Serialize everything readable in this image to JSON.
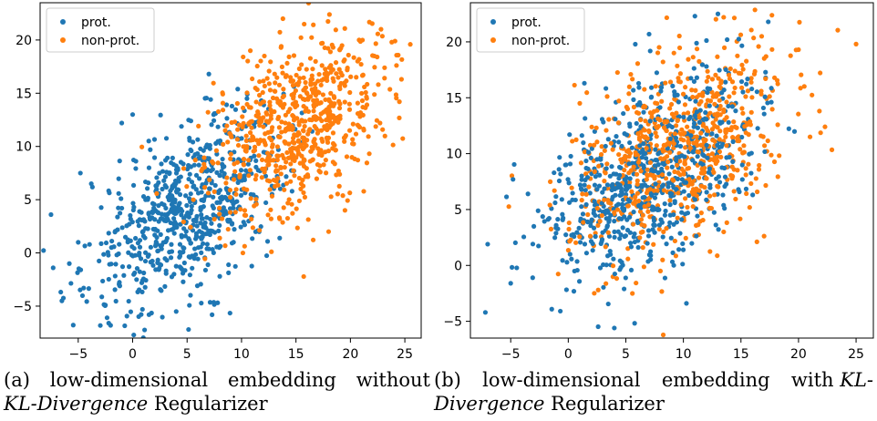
{
  "colors": {
    "prot": "#1f77b4",
    "non_prot": "#ff7f0e"
  },
  "legend_labels": [
    "prot.",
    "non-prot."
  ],
  "captions": {
    "a": {
      "label": "(a)",
      "line1_words": [
        "low-dimensional",
        "embedding",
        "without"
      ],
      "line2_italic": "KL-Divergence",
      "line2_rest": " Regularizer"
    },
    "b": {
      "label": "(b)",
      "line1_words": [
        "low-dimensional",
        "embedding",
        "with"
      ],
      "line1_italic": "KL-",
      "line2_italic": "Divergence",
      "line2_rest": " Regularizer"
    }
  },
  "chart_data": [
    {
      "type": "scatter",
      "title": "",
      "xlabel": "",
      "ylabel": "",
      "xlim": [
        -8.5,
        26.5
      ],
      "ylim": [
        -8,
        23.5
      ],
      "xticks": [
        -5,
        0,
        5,
        10,
        15,
        20,
        25
      ],
      "yticks": [
        -5,
        0,
        5,
        10,
        15,
        20
      ],
      "legend_position": "top-left",
      "series": [
        {
          "name": "prot.",
          "center": [
            5,
            4
          ],
          "spread": [
            4.5,
            4.5
          ],
          "corr": 0.55,
          "count": 700,
          "points": [
            [
              -7.5,
              3.6
            ],
            [
              -7.3,
              -1.4
            ],
            [
              -6.5,
              -4.5
            ],
            [
              -4.8,
              7.5
            ],
            [
              -3.8,
              6.5
            ],
            [
              -2.2,
              -6.6
            ],
            [
              -2.5,
              -4.9
            ],
            [
              0,
              13
            ],
            [
              -1,
              12.2
            ],
            [
              1.5,
              -5.8
            ],
            [
              4,
              -5.5
            ],
            [
              7,
              16.8
            ],
            [
              10.5,
              14.5
            ],
            [
              8,
              -2.2
            ],
            [
              -5,
              1
            ],
            [
              -4.5,
              -3.3
            ]
          ]
        },
        {
          "name": "non-prot.",
          "center": [
            15,
            12
          ],
          "spread": [
            4,
            4
          ],
          "corr": 0.4,
          "count": 700,
          "points": [
            [
              13.8,
              22
            ],
            [
              20.8,
              20
            ],
            [
              24.5,
              14.2
            ],
            [
              23.8,
              19.8
            ],
            [
              19.5,
              4
            ],
            [
              13.5,
              3.2
            ],
            [
              8.5,
              11.5
            ],
            [
              9.5,
              5.5
            ],
            [
              18,
              2
            ]
          ]
        }
      ]
    },
    {
      "type": "scatter",
      "title": "",
      "xlabel": "",
      "ylabel": "",
      "xlim": [
        -8.5,
        26.5
      ],
      "ylim": [
        -6.5,
        23.5
      ],
      "xticks": [
        -5,
        0,
        5,
        10,
        15,
        20,
        25
      ],
      "yticks": [
        -5,
        0,
        5,
        10,
        15,
        20
      ],
      "legend_position": "top-left",
      "series": [
        {
          "name": "prot.",
          "center": [
            7,
            8
          ],
          "spread": [
            4.5,
            4.5
          ],
          "corr": 0.5,
          "count": 700,
          "points": [
            [
              -7.2,
              -4.2
            ],
            [
              -7,
              1.9
            ],
            [
              -5,
              -1.6
            ],
            [
              4,
              -5.6
            ],
            [
              11,
              22.3
            ],
            [
              13,
              22.5
            ],
            [
              13.8,
              20.2
            ],
            [
              1.4,
              16.3
            ],
            [
              -4.8,
              7.7
            ],
            [
              -3.5,
              6.4
            ]
          ]
        },
        {
          "name": "non-prot.",
          "center": [
            9.5,
            10
          ],
          "spread": [
            4.5,
            4.5
          ],
          "corr": 0.45,
          "count": 700,
          "points": [
            [
              25,
              19.8
            ],
            [
              22.3,
              12.4
            ],
            [
              13.5,
              22.2
            ],
            [
              16.8,
              20.5
            ],
            [
              20,
              19.3
            ],
            [
              2.6,
              -2.2
            ],
            [
              13.5,
              3
            ],
            [
              21,
              11.5
            ],
            [
              1,
              14.5
            ]
          ]
        }
      ]
    }
  ]
}
